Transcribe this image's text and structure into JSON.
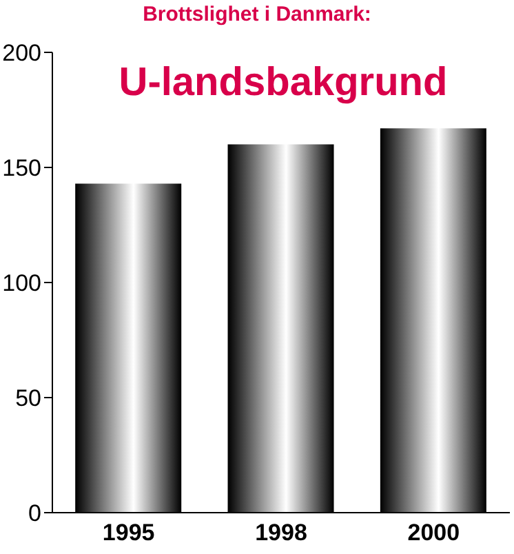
{
  "chart_data": {
    "type": "bar",
    "title": "Brottslighet i Danmark:",
    "subtitle": "U-landsbakgrund",
    "categories": [
      "1995",
      "1998",
      "2000"
    ],
    "values": [
      143,
      160,
      167
    ],
    "color": "#000000",
    "ylim": [
      0,
      200
    ],
    "yticks": [
      0,
      50,
      100,
      150,
      200
    ],
    "grid": false,
    "legend": false
  }
}
